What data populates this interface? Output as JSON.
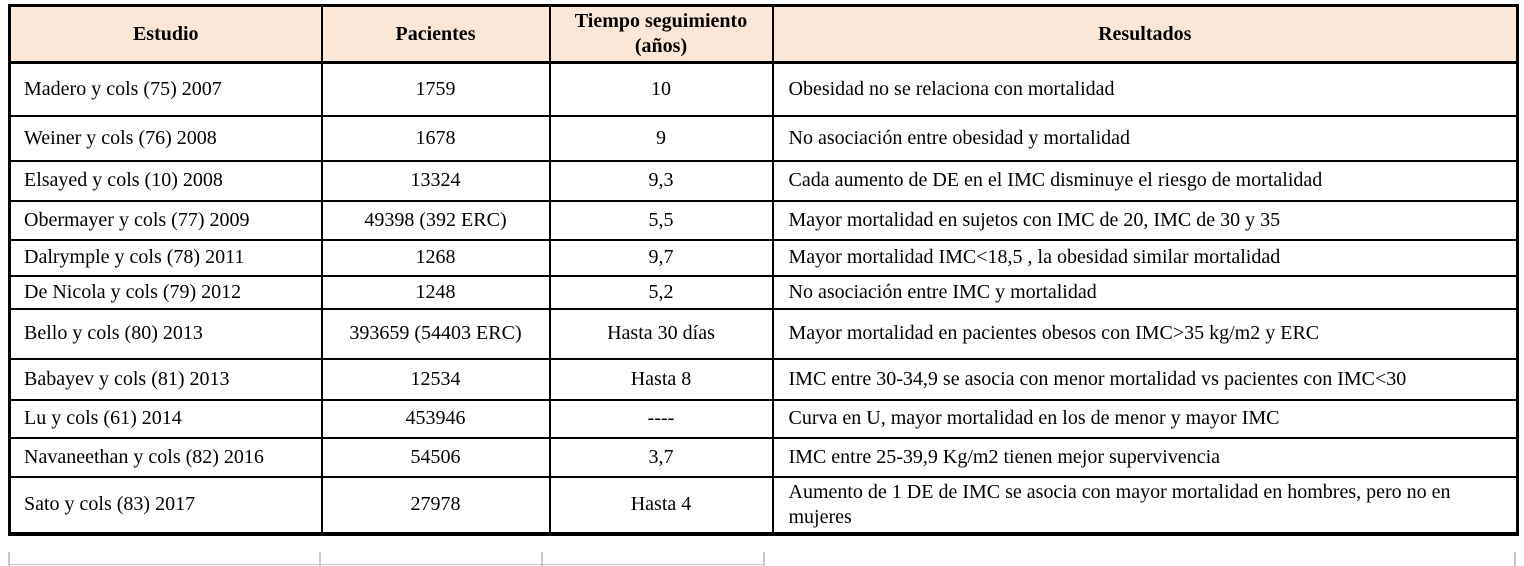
{
  "table": {
    "columns": [
      {
        "label": "Estudio"
      },
      {
        "label": "Pacientes"
      },
      {
        "label": "Tiempo seguimiento (años)"
      },
      {
        "label": "Resultados"
      }
    ],
    "rows": [
      {
        "estudio": "Madero y cols (75) 2007",
        "pacientes": "1759",
        "tiempo": "10",
        "resultados": "Obesidad no se relaciona con mortalidad"
      },
      {
        "estudio": "Weiner y cols (76) 2008",
        "pacientes": "1678",
        "tiempo": "9",
        "resultados": "No asociación entre obesidad y mortalidad"
      },
      {
        "estudio": "Elsayed y cols (10) 2008",
        "pacientes": "13324",
        "tiempo": "9,3",
        "resultados": "Cada aumento de DE en el IMC disminuye el riesgo de mortalidad"
      },
      {
        "estudio": "Obermayer y cols (77) 2009",
        "pacientes": "49398 (392 ERC)",
        "tiempo": "5,5",
        "resultados": "Mayor mortalidad en sujetos con IMC de 20, IMC de 30 y 35"
      },
      {
        "estudio": "Dalrymple y cols (78) 2011",
        "pacientes": "1268",
        "tiempo": "9,7",
        "resultados": "Mayor mortalidad IMC<18,5 , la obesidad similar mortalidad"
      },
      {
        "estudio": "De Nicola y cols (79) 2012",
        "pacientes": "1248",
        "tiempo": "5,2",
        "resultados": "No asociación entre IMC y mortalidad"
      },
      {
        "estudio": "Bello y cols (80) 2013",
        "pacientes": "393659 (54403 ERC)",
        "tiempo": "Hasta 30 días",
        "resultados": "Mayor mortalidad en pacientes obesos con IMC>35 kg/m2 y ERC"
      },
      {
        "estudio": "Babayev y cols (81) 2013",
        "pacientes": "12534",
        "tiempo": "Hasta 8",
        "resultados": "IMC entre 30-34,9 se asocia con menor mortalidad vs pacientes con IMC<30"
      },
      {
        "estudio": "Lu y cols (61) 2014",
        "pacientes": "453946",
        "tiempo": "----",
        "resultados": "Curva en U, mayor mortalidad en los de menor y mayor IMC"
      },
      {
        "estudio": "Navaneethan y cols (82) 2016",
        "pacientes": "54506",
        "tiempo": "3,7",
        "resultados": "IMC entre 25-39,9 Kg/m2 tienen mejor supervivencia"
      },
      {
        "estudio": "Sato y cols (83) 2017",
        "pacientes": "27978",
        "tiempo": "Hasta 4",
        "resultados": "Aumento de 1 DE de IMC se asocia con mayor mortalidad en hombres, pero no en mujeres"
      }
    ]
  },
  "colors": {
    "header_bg": "#FAE7D8",
    "border": "#000000",
    "text": "#000000"
  }
}
